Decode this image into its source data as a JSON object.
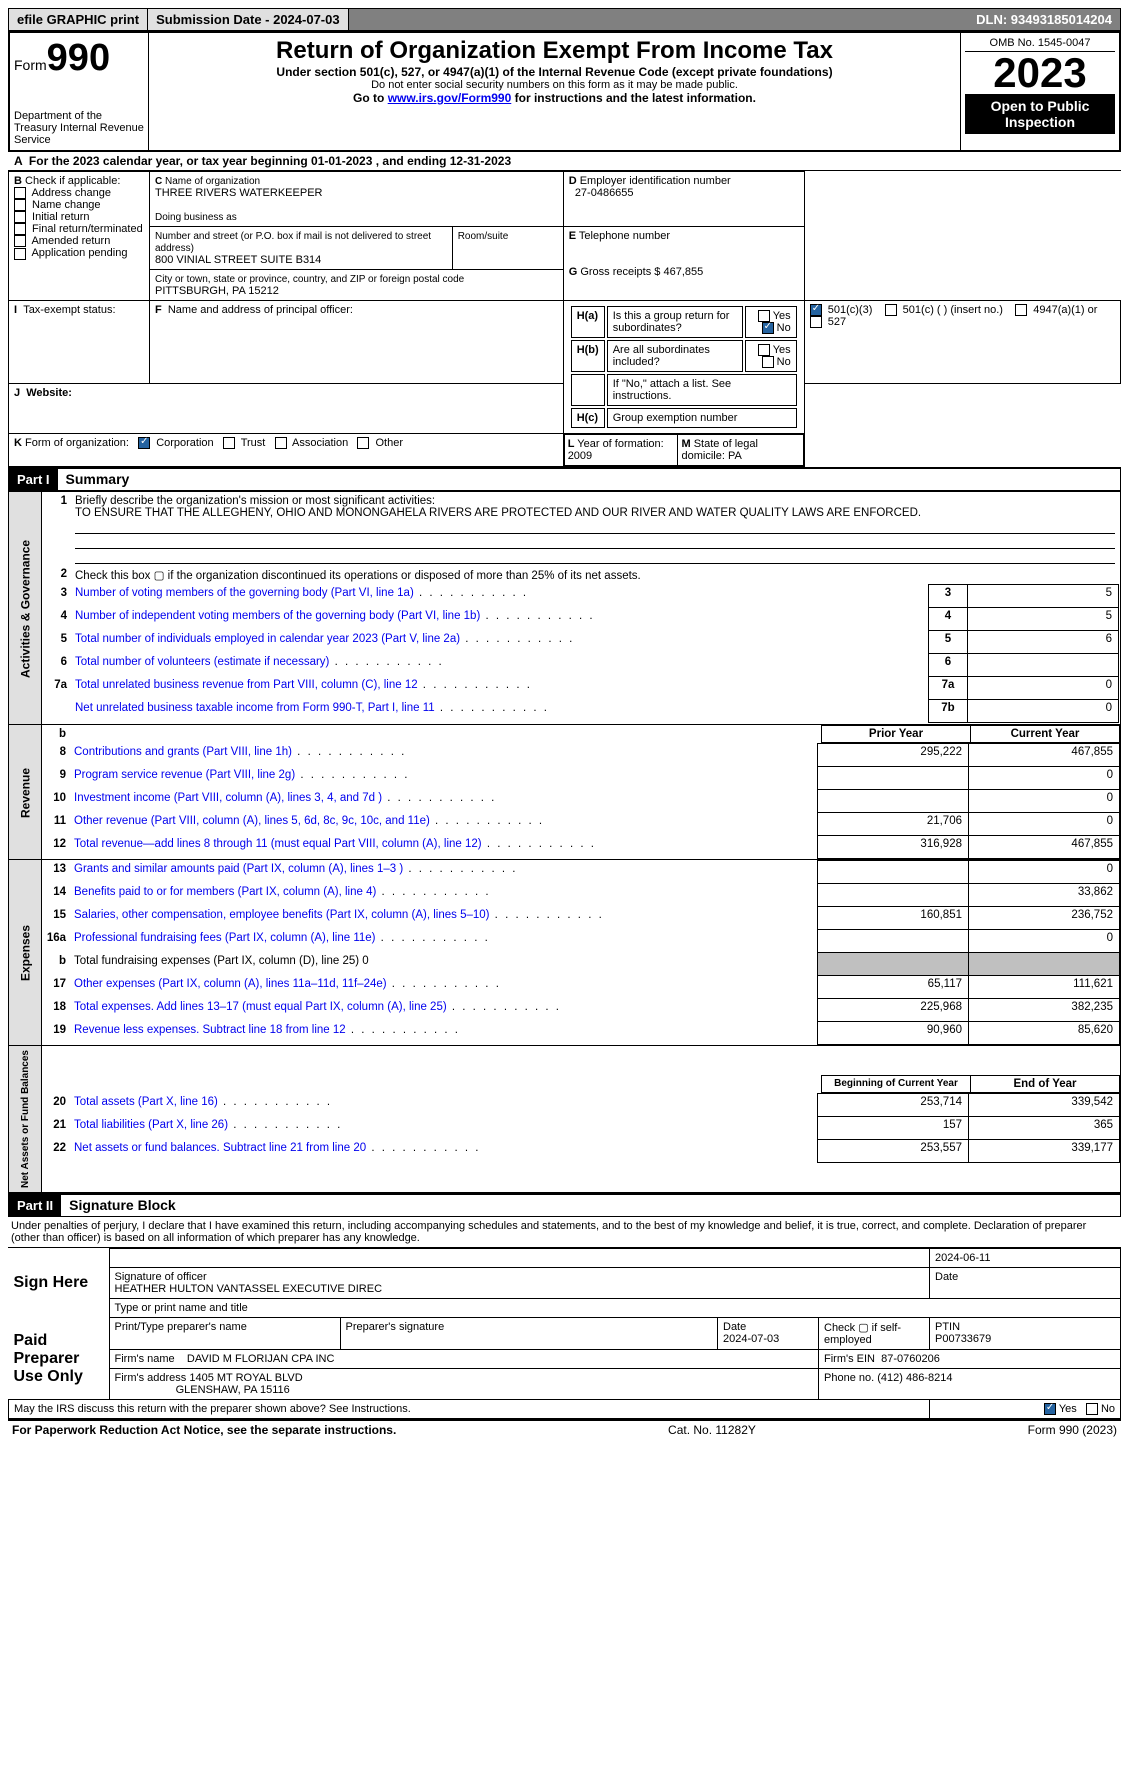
{
  "top": {
    "print": "efile GRAPHIC print",
    "submission": "Submission Date - 2024-07-03",
    "dln": "DLN: 93493185014204"
  },
  "header": {
    "form_label": "Form",
    "form_no": "990",
    "title": "Return of Organization Exempt From Income Tax",
    "subtitle": "Under section 501(c), 527, or 4947(a)(1) of the Internal Revenue Code (except private foundations)",
    "privacy": "Do not enter social security numbers on this form as it may be made public.",
    "goto": "Go to ",
    "url": "www.irs.gov/Form990",
    "goto2": " for instructions and the latest information.",
    "omb": "OMB No. 1545-0047",
    "year": "2023",
    "public": "Open to Public Inspection",
    "dept": "Department of the Treasury Internal Revenue Service"
  },
  "period": {
    "label_a": "A",
    "text": "For the 2023 calendar year, or tax year beginning 01-01-2023   , and ending 12-31-2023"
  },
  "boxB": {
    "label": "B",
    "title": "Check if applicable:",
    "items": [
      "Address change",
      "Name change",
      "Initial return",
      "Final return/terminated",
      "Amended return",
      "Application pending"
    ]
  },
  "boxC": {
    "label": "C",
    "name_lbl": "Name of organization",
    "name": "THREE RIVERS WATERKEEPER",
    "dba_lbl": "Doing business as",
    "addr_lbl": "Number and street (or P.O. box if mail is not delivered to street address)",
    "addr": "800 VINIAL STREET SUITE B314",
    "room_lbl": "Room/suite",
    "city_lbl": "City or town, state or province, country, and ZIP or foreign postal code",
    "city": "PITTSBURGH, PA  15212"
  },
  "boxD": {
    "label": "D",
    "title": "Employer identification number",
    "val": "27-0486655"
  },
  "boxE": {
    "label": "E",
    "title": "Telephone number"
  },
  "boxG": {
    "label": "G",
    "title": "Gross receipts $",
    "val": "467,855"
  },
  "boxF": {
    "label": "F",
    "title": "Name and address of principal officer:"
  },
  "boxH": {
    "a": "H(a)",
    "a_txt": "Is this a group return for subordinates?",
    "b": "H(b)",
    "b_txt": "Are all subordinates included?",
    "b_note": "If \"No,\" attach a list. See instructions.",
    "c": "H(c)",
    "c_txt": "Group exemption number",
    "yes": "Yes",
    "no": "No"
  },
  "boxI": {
    "label": "I",
    "title": "Tax-exempt status:",
    "opt1": "501(c)(3)",
    "opt2": "501(c) (  ) (insert no.)",
    "opt3": "4947(a)(1) or",
    "opt4": "527"
  },
  "boxJ": {
    "label": "J",
    "title": "Website:"
  },
  "boxK": {
    "label": "K",
    "title": "Form of organization:",
    "opt1": "Corporation",
    "opt2": "Trust",
    "opt3": "Association",
    "opt4": "Other"
  },
  "boxL": {
    "label": "L",
    "title": "Year of formation:",
    "val": "2009"
  },
  "boxM": {
    "label": "M",
    "title": "State of legal domicile:",
    "val": "PA"
  },
  "part1": {
    "hdr": "Part I",
    "title": "Summary"
  },
  "part2": {
    "hdr": "Part II",
    "title": "Signature Block"
  },
  "vtabs": {
    "gov": "Activities & Governance",
    "rev": "Revenue",
    "exp": "Expenses",
    "net": "Net Assets or\nFund Balances"
  },
  "mission": {
    "num": "1",
    "label": "Briefly describe the organization's mission or most significant activities:",
    "text": "TO ENSURE THAT THE ALLEGHENY, OHIO AND MONONGAHELA RIVERS ARE PROTECTED AND OUR RIVER AND WATER QUALITY LAWS ARE ENFORCED."
  },
  "gov_lines": [
    {
      "n": "2",
      "d": "Check this box ▢ if the organization discontinued its operations or disposed of more than 25% of its net assets."
    },
    {
      "n": "3",
      "d": "Number of voting members of the governing body (Part VI, line 1a)",
      "box": "3",
      "v": "5"
    },
    {
      "n": "4",
      "d": "Number of independent voting members of the governing body (Part VI, line 1b)",
      "box": "4",
      "v": "5"
    },
    {
      "n": "5",
      "d": "Total number of individuals employed in calendar year 2023 (Part V, line 2a)",
      "box": "5",
      "v": "6"
    },
    {
      "n": "6",
      "d": "Total number of volunteers (estimate if necessary)",
      "box": "6",
      "v": ""
    },
    {
      "n": "7a",
      "d": "Total unrelated business revenue from Part VIII, column (C), line 12",
      "box": "7a",
      "v": "0"
    },
    {
      "n": "",
      "d": "Net unrelated business taxable income from Form 990-T, Part I, line 11",
      "box": "7b",
      "v": "0"
    }
  ],
  "col_hdrs": {
    "blank": "b",
    "py": "Prior Year",
    "cy": "Current Year",
    "bcy": "Beginning of Current Year",
    "eoy": "End of Year"
  },
  "rev_lines": [
    {
      "n": "8",
      "d": "Contributions and grants (Part VIII, line 1h)",
      "py": "295,222",
      "cy": "467,855"
    },
    {
      "n": "9",
      "d": "Program service revenue (Part VIII, line 2g)",
      "py": "",
      "cy": "0"
    },
    {
      "n": "10",
      "d": "Investment income (Part VIII, column (A), lines 3, 4, and 7d )",
      "py": "",
      "cy": "0"
    },
    {
      "n": "11",
      "d": "Other revenue (Part VIII, column (A), lines 5, 6d, 8c, 9c, 10c, and 11e)",
      "py": "21,706",
      "cy": "0"
    },
    {
      "n": "12",
      "d": "Total revenue—add lines 8 through 11 (must equal Part VIII, column (A), line 12)",
      "py": "316,928",
      "cy": "467,855"
    }
  ],
  "exp_lines": [
    {
      "n": "13",
      "d": "Grants and similar amounts paid (Part IX, column (A), lines 1–3 )",
      "py": "",
      "cy": "0"
    },
    {
      "n": "14",
      "d": "Benefits paid to or for members (Part IX, column (A), line 4)",
      "py": "",
      "cy": "33,862"
    },
    {
      "n": "15",
      "d": "Salaries, other compensation, employee benefits (Part IX, column (A), lines 5–10)",
      "py": "160,851",
      "cy": "236,752"
    },
    {
      "n": "16a",
      "d": "Professional fundraising fees (Part IX, column (A), line 11e)",
      "py": "",
      "cy": "0"
    },
    {
      "n": "b",
      "d": "Total fundraising expenses (Part IX, column (D), line 25) 0",
      "shaded": true
    },
    {
      "n": "17",
      "d": "Other expenses (Part IX, column (A), lines 11a–11d, 11f–24e)",
      "py": "65,117",
      "cy": "111,621"
    },
    {
      "n": "18",
      "d": "Total expenses. Add lines 13–17 (must equal Part IX, column (A), line 25)",
      "py": "225,968",
      "cy": "382,235"
    },
    {
      "n": "19",
      "d": "Revenue less expenses. Subtract line 18 from line 12",
      "py": "90,960",
      "cy": "85,620"
    }
  ],
  "net_lines": [
    {
      "n": "20",
      "d": "Total assets (Part X, line 16)",
      "py": "253,714",
      "cy": "339,542"
    },
    {
      "n": "21",
      "d": "Total liabilities (Part X, line 26)",
      "py": "157",
      "cy": "365"
    },
    {
      "n": "22",
      "d": "Net assets or fund balances. Subtract line 21 from line 20",
      "py": "253,557",
      "cy": "339,177"
    }
  ],
  "sig": {
    "perjury": "Under penalties of perjury, I declare that I have examined this return, including accompanying schedules and statements, and to the best of my knowledge and belief, it is true, correct, and complete. Declaration of preparer (other than officer) is based on all information of which preparer has any knowledge.",
    "sign_here": "Sign Here",
    "paid": "Paid Preparer Use Only",
    "sig_officer": "Signature of officer",
    "officer": "HEATHER HULTON VANTASSEL  EXECUTIVE DIREC",
    "type_name": "Type or print name and title",
    "date": "Date",
    "date_val": "2024-06-11",
    "prep_name_lbl": "Print/Type preparer's name",
    "prep_sig_lbl": "Preparer's signature",
    "prep_date": "2024-07-03",
    "check_self": "Check ▢ if self-employed",
    "ptin_lbl": "PTIN",
    "ptin": "P00733679",
    "firm_name_lbl": "Firm's name",
    "firm_name": "DAVID M FLORIJAN CPA INC",
    "firm_ein_lbl": "Firm's EIN",
    "firm_ein": "87-0760206",
    "firm_addr_lbl": "Firm's address",
    "firm_addr": "1405 MT ROYAL BLVD",
    "firm_city": "GLENSHAW, PA  15116",
    "phone_lbl": "Phone no.",
    "phone": "(412) 486-8214",
    "discuss": "May the IRS discuss this return with the preparer shown above? See Instructions.",
    "yes": "Yes",
    "no": "No"
  },
  "footer": {
    "paperwork": "For Paperwork Reduction Act Notice, see the separate instructions.",
    "cat": "Cat. No. 11282Y",
    "form": "Form 990 (2023)"
  }
}
